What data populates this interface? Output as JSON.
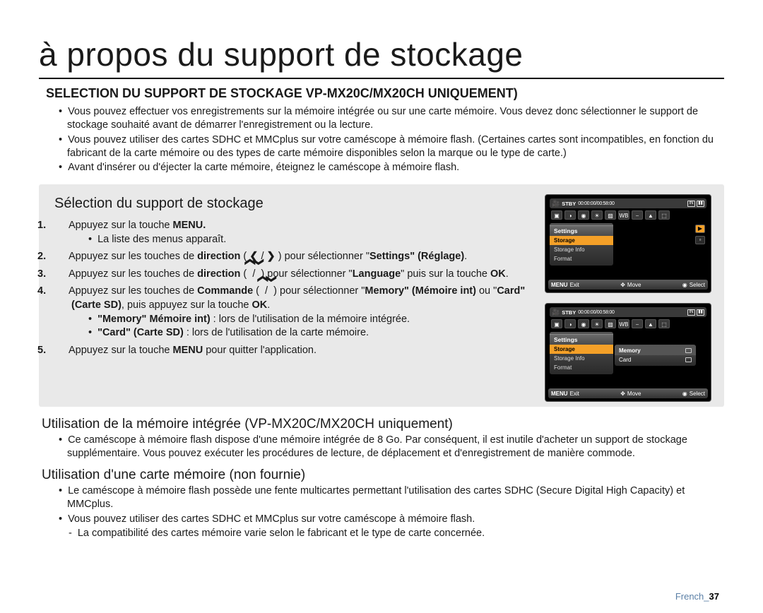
{
  "page": {
    "title": "à propos du support de stockage",
    "section_heading_a": "SELECTION DU SUPPORT DE STOCKAGE ",
    "section_heading_b": "VP-MX20C/MX20CH UNIQUEMENT)",
    "footer_label": "French",
    "footer_sep": "_",
    "footer_page": "37"
  },
  "intro_bullets": [
    "Vous pouvez effectuer vos enregistrements sur la mémoire intégrée ou sur une carte mémoire. Vous devez donc sélectionner le support de stockage souhaité avant de démarrer l'enregistrement ou la lecture.",
    "Vous pouvez utiliser des cartes SDHC et MMCplus sur votre caméscope à mémoire flash. (Certaines cartes sont incompatibles, en fonction du fabricant de la carte mémoire ou des types de carte mémoire disponibles selon la marque ou le type de carte.)",
    "Avant d'insérer ou d'éjecter la carte mémoire, éteignez le caméscope à mémoire flash."
  ],
  "graybox": {
    "title": "Sélection du support de stockage",
    "steps": {
      "s1_a": "Appuyez sur la touche ",
      "s1_b": "MENU.",
      "s1_sub": "La liste des menus apparaît.",
      "s2_a": "Appuyez sur les touches de ",
      "s2_dir": "direction",
      "s2_b": " ( ",
      "s2_c": " / ",
      "s2_d": " ) pour sélectionner \"",
      "s2_e": "Settings\" (Réglage)",
      "s2_f": ".",
      "s3_a": "Appuyez sur les touches de ",
      "s3_b": " ( ",
      "s3_c": " / ",
      "s3_d": " ) pour sélectionner \"",
      "s3_e": "Language",
      "s3_f": "\" puis sur la touche ",
      "s3_g": "OK",
      "s3_h": ".",
      "s4_a": "Appuyez sur les touches de ",
      "s4_cmd": "Commande",
      "s4_b": " ( ",
      "s4_c": " / ",
      "s4_d": " ) pour sélectionner \"",
      "s4_e": "Memory\" (Mémoire int)",
      "s4_f": " ou \"",
      "s4_g": "Card\" (Carte SD)",
      "s4_h": ", puis appuyez sur la touche ",
      "s4_i": "OK",
      "s4_j": ".",
      "s4_sub1a": "\"Memory\" Mémoire int)",
      "s4_sub1b": " : lors de l'utilisation de la mémoire intégrée.",
      "s4_sub2a": "\"Card\" (Carte SD)",
      "s4_sub2b": " : lors de l'utilisation de la carte mémoire.",
      "s5_a": "Appuyez sur la touche ",
      "s5_b": "MENU",
      "s5_c": " pour quitter l'application."
    }
  },
  "screens": {
    "top": {
      "stby": "STBY",
      "timecode": "00:00:00/00:58:00",
      "in": "IN",
      "menu_header": "Settings",
      "menu_items": [
        "Storage",
        "Storage Info",
        "Format"
      ],
      "bottom": {
        "menu": "MENU",
        "exit": "Exit",
        "move": "Move",
        "select": "Select"
      }
    },
    "bottom": {
      "stby": "STBY",
      "timecode": "00:00:00/00:58:00",
      "in": "IN",
      "menu_header": "Settings",
      "menu_items": [
        "Storage",
        "Storage Info",
        "Format"
      ],
      "submenu": [
        "Memory",
        "Card"
      ],
      "bottom": {
        "menu": "MENU",
        "exit": "Exit",
        "move": "Move",
        "select": "Select"
      }
    }
  },
  "below": {
    "h1": "Utilisation de la mémoire intégrée (VP-MX20C/MX20CH uniquement)",
    "b1": "Ce caméscope à mémoire flash dispose d'une mémoire intégrée de 8 Go. Par conséquent, il est inutile d'acheter un support de stockage supplémentaire. Vous pouvez exécuter les procédures de lecture, de déplacement et d'enregistrement de manière commode.",
    "h2": "Utilisation d'une carte mémoire (non fournie)",
    "b2": "Le caméscope à mémoire flash possède une fente multicartes permettant l'utilisation des cartes SDHC (Secure Digital High Capacity) et MMCplus.",
    "b3": "Vous pouvez utiliser des cartes SDHC et MMCplus sur votre caméscope à mémoire flash.",
    "b3d": "La compatibilité des cartes mémoire varie selon le fabricant et le type de carte concernée."
  },
  "glyphs": {
    "left": "❮",
    "right": "❯",
    "up": "❮",
    "down": "❯"
  }
}
